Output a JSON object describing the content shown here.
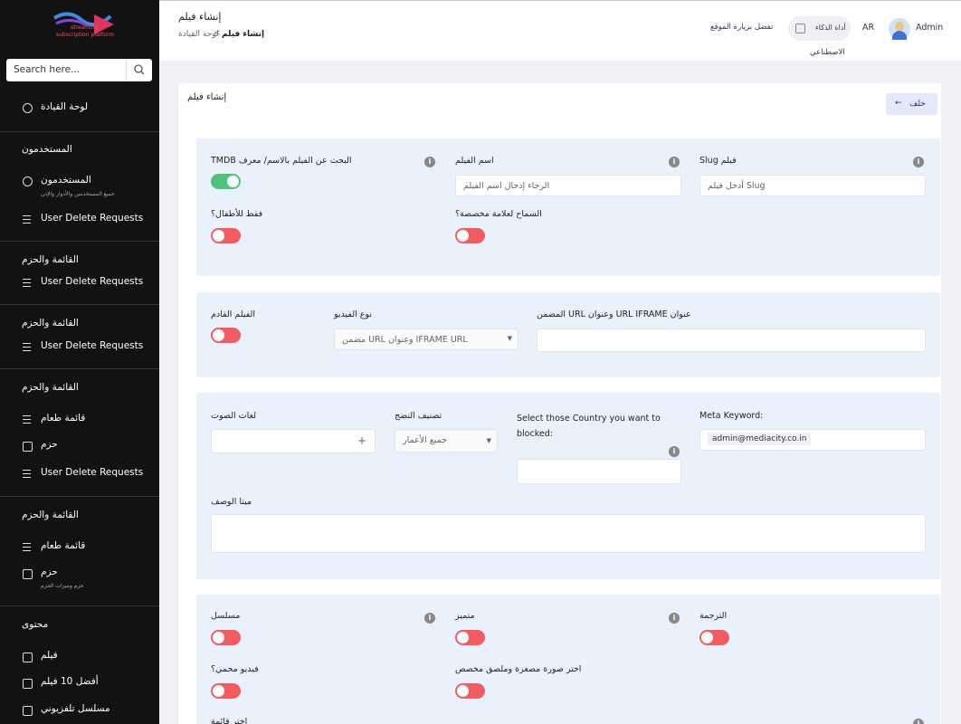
{
  "sidebar": {
    "logo": {
      "line1": "streaming",
      "line2": "subscription platform"
    },
    "search_placeholder": "Search here...",
    "dashboard": "لوحة القيادة",
    "sections": [
      {
        "title": "المستخدمون",
        "items": [
          {
            "label": "المستخدمون",
            "sub": "جميع المستخدمين والأدوار والإذن"
          },
          {
            "label": "User Delete Requests"
          }
        ]
      },
      {
        "title": "القائمة والحزم",
        "items": [
          {
            "label": "User Delete Requests"
          }
        ]
      },
      {
        "title": "القائمة والحزم",
        "items": [
          {
            "label": "User Delete Requests"
          }
        ]
      },
      {
        "title": "القائمة والحزم",
        "items": [
          {
            "label": "قائمة طعام"
          },
          {
            "label": "حزم"
          },
          {
            "label": "User Delete Requests"
          }
        ]
      },
      {
        "title": "القائمة والحزم",
        "items": [
          {
            "label": "قائمة طعام"
          },
          {
            "label": "حزم",
            "sub": "حزم وميزات الحزم"
          }
        ]
      },
      {
        "title": "محتوى",
        "items": [
          {
            "label": "فيلم"
          },
          {
            "label": "أفضل 10 فيلم"
          },
          {
            "label": "مسلسل تلفزيوني"
          }
        ]
      }
    ]
  },
  "header": {
    "title": "إنشاء فيلم",
    "breadcrumb": [
      "لوحة القيادة",
      "إنشاء فيلم"
    ],
    "visit_site": "تفضل بزيارة الموقع",
    "ai_tool": [
      "أداة الذكاء",
      "الاصطناعي"
    ],
    "language": "AR",
    "user": "Admin"
  },
  "form": {
    "title": "إنشاء فيلم",
    "back_button": "خلف",
    "panel1": {
      "slug_label": "Slug فيلم",
      "slug_placeholder": "أدخل فيلم Slug",
      "name_label": "اسم الفيلم",
      "name_placeholder": "الرجاء إدخال اسم الفيلم",
      "tmdb_label": "TMDB البحث عن الفيلم بالاسم/ معرف",
      "custom_label": "السماح لعلامة مخصصة؟",
      "kids_label": "فقط للأطفال؟"
    },
    "panel2": {
      "url_label": "المضمن URL وعنوان URL IFRAME عنوان",
      "video_type_label": "نوع الفيديو",
      "video_type_value": "مضمن URL وعنوان IFRAME URL",
      "upcoming_label": "الفيلم القادم"
    },
    "panel3": {
      "meta_keyword_label": "Meta Keyword:",
      "meta_keyword_tag": "admin@mediacity.co.in",
      "country_label": "Select those Country you want to blocked:",
      "maturity_label": "تصنيف النضج",
      "maturity_value": "جميع الأعمار",
      "audio_label": "لغات الصوت",
      "add": "+",
      "meta_desc_label": "ميتا الوصف"
    },
    "panel4": {
      "subtitle_label": "الترجمة",
      "featured_label": "متميز",
      "series_label": "مسلسل",
      "thumbnail_label": "اختر صورة مصغرة وملصق مخصص",
      "protected_label": "فيديو محمي؟",
      "menu_label": "اختر قائمة"
    }
  }
}
